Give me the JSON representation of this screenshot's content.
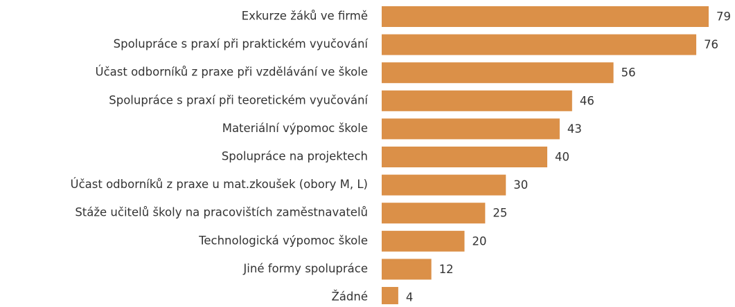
{
  "chart_data": {
    "type": "bar",
    "orientation": "horizontal",
    "categories": [
      "Exkurze žáků ve firmě",
      "Spolupráce s praxí při praktickém vyučování",
      "Účast odborníků z praxe při vzdělávání ve škole",
      "Spolupráce s praxí při teoretickém vyučování",
      "Materiální výpomoc škole",
      "Spolupráce na projektech",
      "Účast odborníků z praxe u mat.zkoušek (obory M, L)",
      "Stáže učitelů školy na pracovištích zaměstnavatelů",
      "Technologická výpomoc škole",
      "Jiné formy spolupráce",
      "Žádné"
    ],
    "values": [
      79,
      76,
      56,
      46,
      43,
      40,
      30,
      25,
      20,
      12,
      4
    ],
    "color": "#db9048"
  }
}
